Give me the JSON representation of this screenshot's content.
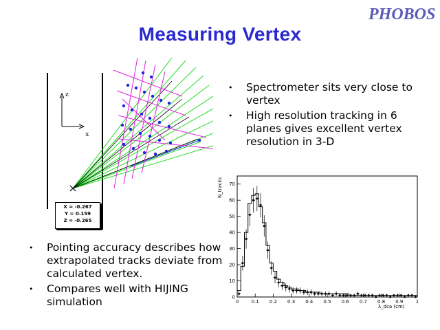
{
  "title": "Measuring Vertex",
  "logo_text": "PHOBOS",
  "right_bullets": [
    {
      "text": "Spectrometer sits very close to vertex"
    },
    {
      "text": "High resolution tracking in 6 planes gives excellent vertex resolution in 3-D"
    }
  ],
  "left_bullets": [
    {
      "text": "Pointing accuracy describes how extrapolated tracks deviate from calculated vertex."
    },
    {
      "text": "Compares well with HIJING simulation"
    }
  ],
  "diagram": {
    "axis_z": "z",
    "axis_x": "x",
    "vertex_readout": {
      "x": "X = -0.267",
      "y": "Y = 0.159",
      "z": "Z = -0.265"
    },
    "colors": {
      "tracks": "#22dd22",
      "planes": "#e020e0",
      "hits": "#2020e0",
      "fitted": "#000000"
    }
  },
  "chart_data": {
    "type": "histogram",
    "ylabel": "N_tracks",
    "xlabel": "λ_dca (cm)",
    "xlim": [
      0,
      1
    ],
    "ylim": [
      0,
      75
    ],
    "x_ticks": [
      "0",
      "0.1",
      "0.2",
      "0.3",
      "0.4",
      "0.5",
      "0.6",
      "0.7",
      "0.8",
      "0.9",
      "1"
    ],
    "y_ticks": [
      "0",
      "10",
      "20",
      "30",
      "40",
      "50",
      "60",
      "70"
    ],
    "bin_width": 0.02,
    "series": [
      {
        "style": "histogram-line",
        "values": [
          4,
          19,
          40,
          58,
          63,
          64,
          56,
          46,
          32,
          21,
          16,
          11,
          9,
          7,
          6,
          5,
          5,
          4,
          4,
          3,
          3,
          3,
          3,
          2,
          2,
          2,
          2,
          2,
          2,
          2,
          2,
          1,
          1,
          1,
          1,
          1,
          1,
          1,
          1,
          1,
          1,
          1,
          1,
          1,
          1,
          1,
          1,
          1,
          1,
          1
        ]
      },
      {
        "style": "points-with-errors",
        "values": [
          2,
          21,
          36,
          51,
          60,
          61,
          57,
          44,
          29,
          18,
          12,
          9,
          7,
          6,
          5,
          4,
          4,
          4,
          3,
          3,
          3,
          2,
          2,
          2,
          2,
          2,
          1,
          2,
          1,
          1,
          1,
          1,
          1,
          2,
          1,
          1,
          1,
          1,
          0,
          1,
          1,
          1,
          0,
          1,
          1,
          1,
          0,
          1,
          1,
          0
        ]
      }
    ]
  }
}
